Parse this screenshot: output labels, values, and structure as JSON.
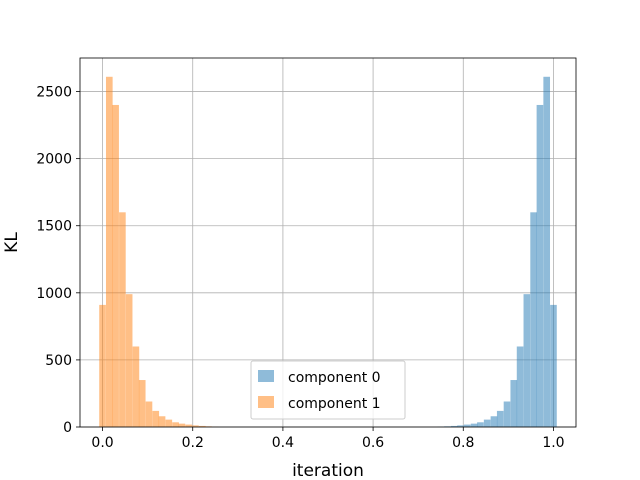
{
  "chart_data": {
    "type": "bar",
    "xlabel": "iteration",
    "ylabel": "KL",
    "xlim": [
      -0.05,
      1.05
    ],
    "ylim": [
      0,
      2750
    ],
    "xticks": [
      0.0,
      0.2,
      0.4,
      0.6,
      0.8,
      1.0
    ],
    "xtick_labels": [
      "0.0",
      "0.2",
      "0.4",
      "0.6",
      "0.8",
      "1.0"
    ],
    "yticks": [
      0,
      500,
      1000,
      1500,
      2000,
      2500
    ],
    "ytick_labels": [
      "0",
      "500",
      "1000",
      "1500",
      "2000",
      "2500"
    ],
    "grid": true,
    "legend_position": "lower center",
    "bin_width": 0.0147,
    "series": [
      {
        "name": "component 0",
        "color": "#1f77b4",
        "bins": [
          [
            0.75,
            2
          ],
          [
            0.765,
            5
          ],
          [
            0.78,
            8
          ],
          [
            0.794,
            12
          ],
          [
            0.809,
            18
          ],
          [
            0.824,
            25
          ],
          [
            0.838,
            35
          ],
          [
            0.853,
            55
          ],
          [
            0.868,
            80
          ],
          [
            0.882,
            120
          ],
          [
            0.897,
            190
          ],
          [
            0.912,
            350
          ],
          [
            0.926,
            600
          ],
          [
            0.941,
            990
          ],
          [
            0.956,
            1600
          ],
          [
            0.97,
            2400
          ],
          [
            0.985,
            2610
          ],
          [
            1.0,
            910
          ]
        ]
      },
      {
        "name": "component 1",
        "color": "#ff7f0e",
        "bins": [
          [
            0.0,
            910
          ],
          [
            0.015,
            2610
          ],
          [
            0.029,
            2400
          ],
          [
            0.044,
            1600
          ],
          [
            0.059,
            990
          ],
          [
            0.074,
            600
          ],
          [
            0.088,
            350
          ],
          [
            0.103,
            190
          ],
          [
            0.118,
            120
          ],
          [
            0.132,
            80
          ],
          [
            0.147,
            55
          ],
          [
            0.162,
            35
          ],
          [
            0.176,
            25
          ],
          [
            0.191,
            18
          ],
          [
            0.206,
            12
          ],
          [
            0.221,
            8
          ],
          [
            0.235,
            5
          ],
          [
            0.25,
            2
          ]
        ]
      }
    ]
  }
}
